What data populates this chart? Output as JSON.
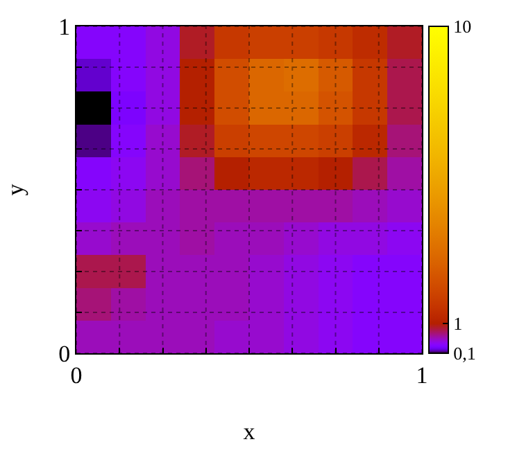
{
  "chart_data": {
    "type": "heatmap",
    "xlabel": "x",
    "ylabel": "y",
    "x": [
      0.05,
      0.15,
      0.25,
      0.35,
      0.45,
      0.55,
      0.65,
      0.75,
      0.85,
      0.95
    ],
    "y": [
      0.95,
      0.85,
      0.75,
      0.65,
      0.55,
      0.45,
      0.35,
      0.25,
      0.15,
      0.05
    ],
    "cells": [
      [
        0.35,
        0.35,
        0.45,
        0.9,
        1.6,
        1.8,
        1.8,
        1.6,
        1.3,
        0.9
      ],
      [
        0.2,
        0.35,
        0.45,
        1.0,
        2.2,
        3.0,
        3.2,
        2.6,
        1.6,
        0.8
      ],
      [
        0.1,
        0.3,
        0.45,
        1.0,
        2.2,
        3.0,
        3.0,
        2.4,
        1.6,
        0.8
      ],
      [
        0.15,
        0.35,
        0.5,
        0.9,
        1.8,
        2.0,
        2.0,
        1.8,
        1.2,
        0.7
      ],
      [
        0.35,
        0.4,
        0.5,
        0.7,
        1.0,
        1.2,
        1.2,
        1.0,
        0.8,
        0.6
      ],
      [
        0.4,
        0.45,
        0.55,
        0.6,
        0.6,
        0.6,
        0.6,
        0.6,
        0.55,
        0.5
      ],
      [
        0.5,
        0.55,
        0.55,
        0.6,
        0.55,
        0.55,
        0.5,
        0.45,
        0.45,
        0.4
      ],
      [
        0.8,
        0.8,
        0.55,
        0.55,
        0.55,
        0.5,
        0.45,
        0.4,
        0.35,
        0.35
      ],
      [
        0.7,
        0.6,
        0.55,
        0.55,
        0.55,
        0.5,
        0.45,
        0.4,
        0.35,
        0.35
      ],
      [
        0.55,
        0.55,
        0.55,
        0.55,
        0.5,
        0.5,
        0.45,
        0.4,
        0.35,
        0.35
      ]
    ],
    "xlim": [
      0,
      1
    ],
    "xticks": [
      0,
      {
        "value": 0.125,
        "label": null
      },
      {
        "value": 0.25,
        "label": null
      },
      {
        "value": 0.375,
        "label": null
      },
      {
        "value": 0.5,
        "label": null
      },
      {
        "value": 0.625,
        "label": null
      },
      {
        "value": 0.75,
        "label": null
      },
      {
        "value": 0.875,
        "label": null
      },
      1
    ],
    "ylim": [
      0,
      1
    ],
    "yticks": [
      0,
      {
        "value": 0.125,
        "label": null
      },
      {
        "value": 0.25,
        "label": null
      },
      {
        "value": 0.375,
        "label": null
      },
      {
        "value": 0.5,
        "label": null
      },
      {
        "value": 0.625,
        "label": null
      },
      {
        "value": 0.75,
        "label": null
      },
      {
        "value": 0.875,
        "label": null
      },
      1
    ],
    "clim": [
      0.1,
      10
    ],
    "cticks": [
      {
        "value": 0.1,
        "label": "0,1"
      },
      1,
      10
    ],
    "grid": true
  }
}
